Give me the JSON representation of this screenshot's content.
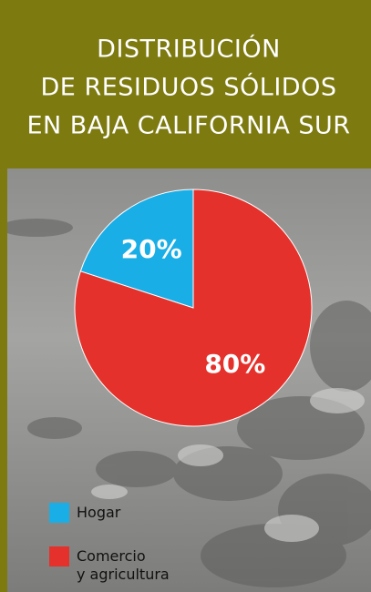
{
  "chart_data": {
    "type": "pie",
    "title": [
      "DISTRIBUCIÓN",
      "DE RESIDUOS SÓLIDOS",
      "EN BAJA CALIFORNIA SUR"
    ],
    "categories": [
      "Hogar",
      "Comercio y agricultura"
    ],
    "values": [
      20,
      80
    ],
    "value_labels": [
      "20%",
      "80%"
    ],
    "colors": [
      "#1aaee6",
      "#e5312b"
    ]
  }
}
